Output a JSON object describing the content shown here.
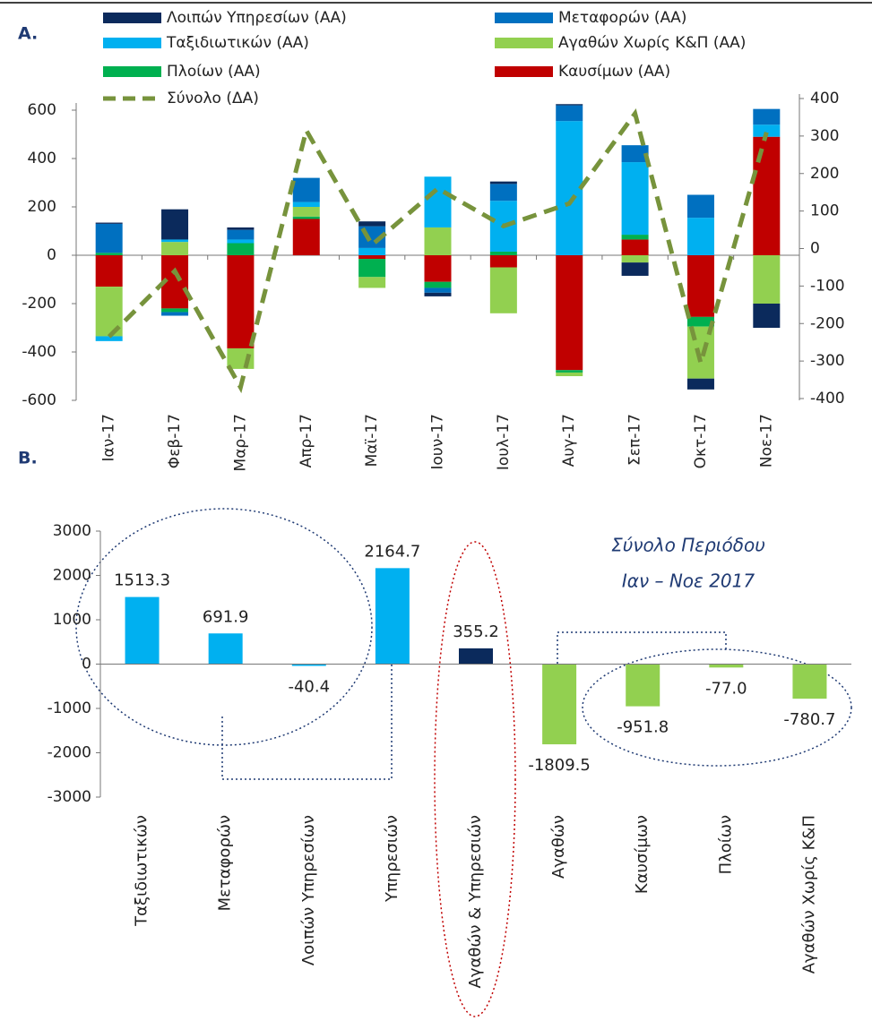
{
  "panel_labels": [
    "A.",
    "B."
  ],
  "chart_data": [
    {
      "type": "bar",
      "stacked": true,
      "categories": [
        "Ιαν-17",
        "Φεβ-17",
        "Μαρ-17",
        "Απρ-17",
        "Μαϊ-17",
        "Ιουν-17",
        "Ιουλ-17",
        "Αυγ-17",
        "Σεπ-17",
        "Οκτ-17",
        "Νοε-17"
      ],
      "ylim": [
        -600,
        600
      ],
      "yticks": [
        -600,
        -400,
        -200,
        0,
        200,
        400,
        600
      ],
      "y2lim": [
        -400,
        400
      ],
      "y2ticks": [
        -400,
        -300,
        -200,
        -100,
        0,
        100,
        200,
        300,
        400
      ],
      "series": [
        {
          "name": "Λοιπών Υπηρεσίων (ΑΑ)",
          "color": "#0b2a5c",
          "values": [
            5,
            125,
            10,
            0,
            20,
            -15,
            10,
            5,
            -55,
            -45,
            -100
          ]
        },
        {
          "name": "Μεταφορών (ΑΑ)",
          "color": "#0070c0",
          "values": [
            120,
            -15,
            40,
            100,
            90,
            -20,
            70,
            65,
            70,
            95,
            65
          ]
        },
        {
          "name": "Ταξιδιωτικών (ΑΑ)",
          "color": "#00b0f0",
          "values": [
            -20,
            10,
            15,
            20,
            30,
            210,
            210,
            555,
            300,
            155,
            50
          ]
        },
        {
          "name": "Αγαθών Χωρίς Κ&Π (ΑΑ)",
          "color": "#92d050",
          "values": [
            -205,
            55,
            -85,
            40,
            -45,
            115,
            -190,
            -15,
            -30,
            -215,
            -200
          ]
        },
        {
          "name": "Πλοίων (ΑΑ)",
          "color": "#00b050",
          "values": [
            10,
            -15,
            50,
            10,
            -75,
            -25,
            15,
            -10,
            20,
            -40,
            0
          ]
        },
        {
          "name": "Καυσίμων (ΑΑ)",
          "color": "#c00000",
          "values": [
            -130,
            -220,
            -385,
            150,
            -15,
            -110,
            -50,
            -475,
            65,
            -255,
            490
          ]
        },
        {
          "name": "Σύνολο (ΔΑ)",
          "color": "#77933c",
          "type": "line",
          "line_style": "dashed",
          "axis": "y2",
          "values": [
            -235,
            -60,
            -370,
            315,
            10,
            160,
            60,
            120,
            360,
            -305,
            310
          ]
        }
      ]
    },
    {
      "type": "bar",
      "categories": [
        "Ταξιδιωτικών",
        "Μεταφορών",
        "Λοιπών Υπηρεσίων",
        "Υπηρεσιών",
        "Αγαθών & Υπηρεσιών",
        "Αγαθών",
        "Καυσίμων",
        "Πλοίων",
        "Αγαθών Χωρίς Κ&Π"
      ],
      "values": [
        1513.3,
        691.9,
        -40.4,
        2164.7,
        355.2,
        -1809.5,
        -951.8,
        -77.0,
        -780.7
      ],
      "value_labels": [
        "1513.3",
        "691.9",
        "-40.4",
        "2164.7",
        "355.2",
        "-1809.5",
        "-951.8",
        "-77.0",
        "-780.7"
      ],
      "colors": [
        "#00b0f0",
        "#00b0f0",
        "#00b0f0",
        "#00b0f0",
        "#0b2a5c",
        "#92d050",
        "#92d050",
        "#92d050",
        "#92d050"
      ],
      "ylim": [
        -3000,
        3000
      ],
      "yticks": [
        -3000,
        -2000,
        -1000,
        0,
        1000,
        2000,
        3000
      ],
      "annotations": [
        "Σύνολο Περιόδου",
        "Ιαν – Νοε 2017"
      ]
    }
  ]
}
